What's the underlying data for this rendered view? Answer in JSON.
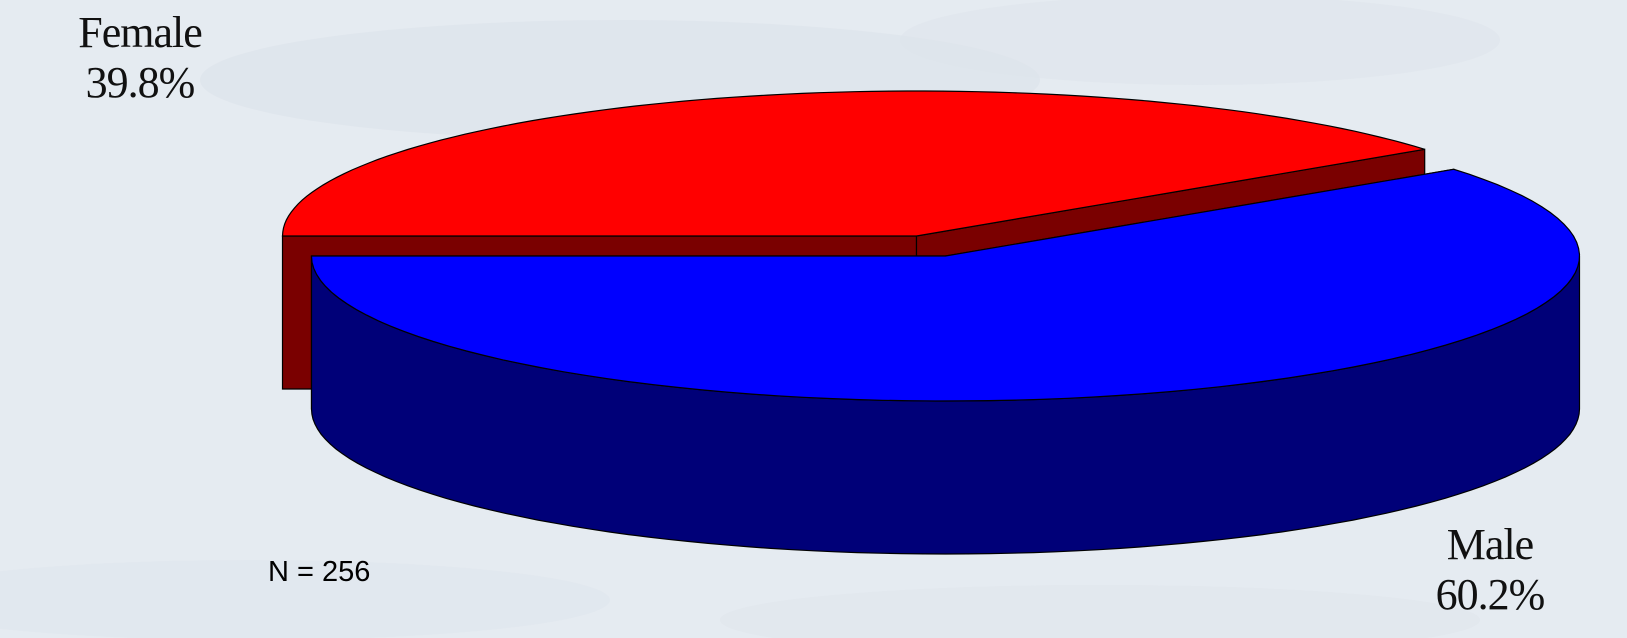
{
  "chart_data": {
    "type": "pie",
    "style": "3d-exploded",
    "title": "",
    "categories": [
      "Female",
      "Male"
    ],
    "values": [
      39.8,
      60.2
    ],
    "value_labels": [
      "39.8%",
      "60.2%"
    ],
    "colors": [
      "#ff0000",
      "#0000ff"
    ],
    "side_colors": [
      "#7a0000",
      "#000078"
    ],
    "legend": "none",
    "note": "N = 256"
  }
}
